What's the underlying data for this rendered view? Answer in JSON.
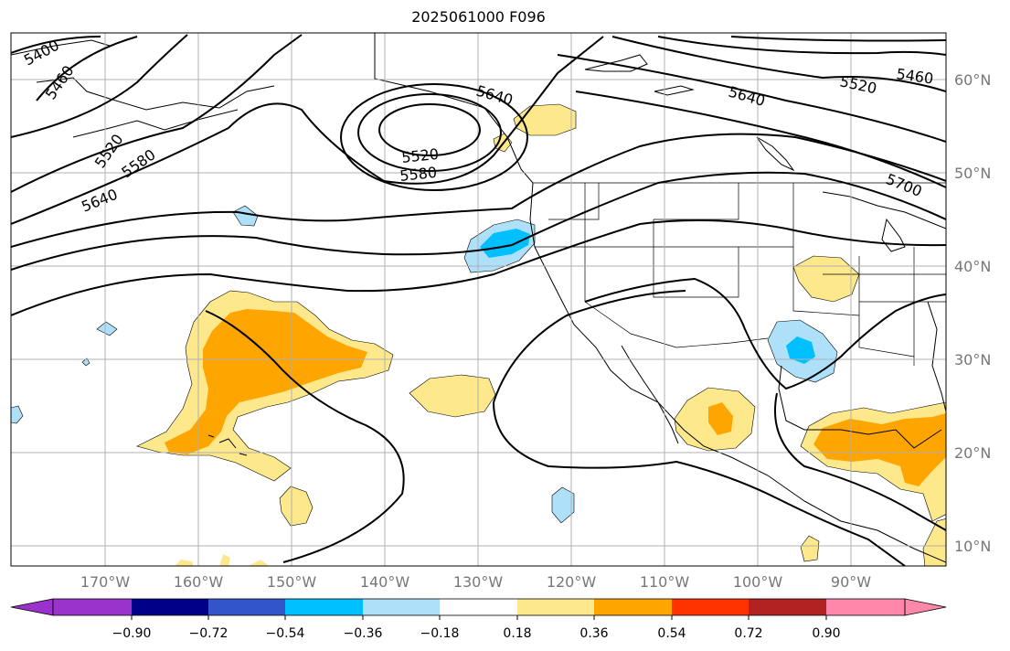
{
  "title": "2025061000 F096",
  "map": {
    "lon_labels": [
      "170°W",
      "160°W",
      "150°W",
      "140°W",
      "130°W",
      "120°W",
      "110°W",
      "100°W",
      "90°W"
    ],
    "lat_labels": [
      "60°N",
      "50°N",
      "40°N",
      "30°N",
      "20°N",
      "10°N"
    ],
    "contour_labels": [
      "5400",
      "5460",
      "5520",
      "5580",
      "5640",
      "5520",
      "5580",
      "5640",
      "5640",
      "5520",
      "5460",
      "5700"
    ],
    "colors": {
      "light_yellow": "#fde98c",
      "orange": "#ffa500",
      "light_blue": "#aee0fa",
      "deep_sky_blue": "#00bfff",
      "grid": "#b0b0b0",
      "contour": "#000000"
    }
  },
  "colorbar": {
    "tick_labels": [
      "−0.90",
      "−0.72",
      "−0.54",
      "−0.36",
      "−0.18",
      "0.18",
      "0.36",
      "0.54",
      "0.72",
      "0.90"
    ],
    "colors": [
      "#9933cc",
      "#000088",
      "#3355cc",
      "#00bfff",
      "#aee0fa",
      "#ffffff",
      "#fde98c",
      "#ffa500",
      "#ff3300",
      "#b22222",
      "#ff88aa"
    ],
    "extend": "both"
  }
}
